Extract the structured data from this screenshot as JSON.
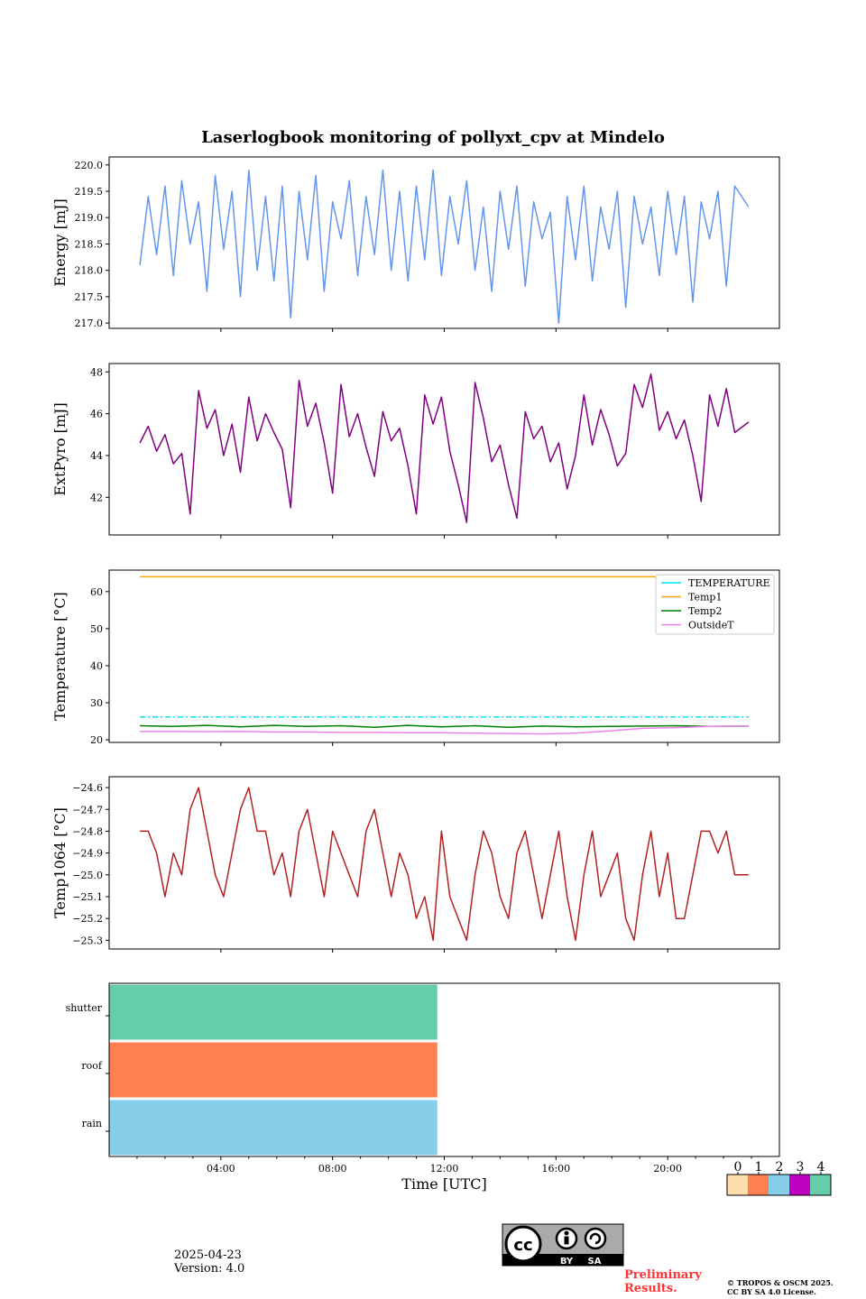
{
  "title": "Laserlogbook monitoring of pollyxt_cpv at Mindelo",
  "chart_data": [
    {
      "type": "line",
      "ylabel": "Energy [mJ]",
      "ylim": [
        216.9,
        220.15
      ],
      "yticks": [
        217.0,
        217.5,
        218.0,
        218.5,
        219.0,
        219.5,
        220.0
      ],
      "ytick_labels": [
        "217.0",
        "217.5",
        "218.0",
        "218.5",
        "219.0",
        "219.5",
        "220.0"
      ],
      "x_hours": [
        1.1,
        1.4,
        1.7,
        2.0,
        2.3,
        2.6,
        2.9,
        3.2,
        3.5,
        3.8,
        4.1,
        4.4,
        4.7,
        5.0,
        5.3,
        5.6,
        5.9,
        6.2,
        6.5,
        6.8,
        7.1,
        7.4,
        7.7,
        8.0,
        8.3,
        8.6,
        8.9,
        9.2,
        9.5,
        9.8,
        10.1,
        10.4,
        10.7,
        11.0,
        11.3,
        11.6,
        11.9,
        12.2,
        12.5,
        12.8,
        13.1,
        13.4,
        13.7,
        14.0,
        14.3,
        14.6,
        14.9,
        15.2,
        15.5,
        15.8,
        16.1,
        16.4,
        16.7,
        17.0,
        17.3,
        17.6,
        17.9,
        18.2,
        18.5,
        18.8,
        19.1,
        19.4,
        19.7,
        20.0,
        20.3,
        20.6,
        20.9,
        21.2,
        21.5,
        21.8,
        22.1,
        22.4,
        22.9
      ],
      "series": [
        {
          "color": "#6495ed",
          "values": [
            218.1,
            219.4,
            218.3,
            219.6,
            217.9,
            219.7,
            218.5,
            219.3,
            217.6,
            219.8,
            218.4,
            219.5,
            217.5,
            219.9,
            218.0,
            219.4,
            217.8,
            219.6,
            217.1,
            219.5,
            218.2,
            219.8,
            217.6,
            219.3,
            218.6,
            219.7,
            217.9,
            219.4,
            218.3,
            219.9,
            218.0,
            219.5,
            217.8,
            219.6,
            218.2,
            219.9,
            217.9,
            219.4,
            218.5,
            219.7,
            218.0,
            219.2,
            217.6,
            219.5,
            218.4,
            219.6,
            217.7,
            219.3,
            218.6,
            219.1,
            217.0,
            219.4,
            218.2,
            219.6,
            217.8,
            219.2,
            218.4,
            219.5,
            217.3,
            219.4,
            218.5,
            219.2,
            217.9,
            219.5,
            218.3,
            219.4,
            217.4,
            219.3,
            218.6,
            219.5,
            217.7,
            219.6,
            219.2
          ]
        }
      ]
    },
    {
      "type": "line",
      "ylabel": "ExtPyro [mJ]",
      "ylim": [
        40.2,
        48.4
      ],
      "yticks": [
        42,
        44,
        46,
        48
      ],
      "ytick_labels": [
        "42",
        "44",
        "46",
        "48"
      ],
      "x_hours": [
        1.1,
        1.4,
        1.7,
        2.0,
        2.3,
        2.6,
        2.9,
        3.2,
        3.5,
        3.8,
        4.1,
        4.4,
        4.7,
        5.0,
        5.3,
        5.6,
        5.9,
        6.2,
        6.5,
        6.8,
        7.1,
        7.4,
        7.7,
        8.0,
        8.3,
        8.6,
        8.9,
        9.2,
        9.5,
        9.8,
        10.1,
        10.4,
        10.7,
        11.0,
        11.3,
        11.6,
        11.9,
        12.2,
        12.5,
        12.8,
        13.1,
        13.4,
        13.7,
        14.0,
        14.3,
        14.6,
        14.9,
        15.2,
        15.5,
        15.8,
        16.1,
        16.4,
        16.7,
        17.0,
        17.3,
        17.6,
        17.9,
        18.2,
        18.5,
        18.8,
        19.1,
        19.4,
        19.7,
        20.0,
        20.3,
        20.6,
        20.9,
        21.2,
        21.5,
        21.8,
        22.1,
        22.4,
        22.9
      ],
      "series": [
        {
          "color": "#800080",
          "values": [
            44.6,
            45.4,
            44.2,
            45.0,
            43.6,
            44.1,
            41.2,
            47.1,
            45.3,
            46.2,
            44.0,
            45.5,
            43.2,
            46.8,
            44.7,
            46.0,
            45.1,
            44.3,
            41.5,
            47.6,
            45.4,
            46.5,
            44.6,
            42.2,
            47.4,
            44.9,
            46.0,
            44.4,
            43.0,
            46.1,
            44.7,
            45.3,
            43.5,
            41.2,
            46.9,
            45.5,
            46.8,
            44.2,
            42.6,
            40.8,
            47.5,
            45.8,
            43.7,
            44.5,
            42.6,
            41.0,
            46.1,
            44.8,
            45.4,
            43.7,
            44.6,
            42.4,
            44.0,
            46.9,
            44.5,
            46.2,
            45.0,
            43.5,
            44.1,
            47.4,
            46.3,
            47.9,
            45.2,
            46.1,
            44.8,
            45.7,
            44.0,
            41.8,
            46.9,
            45.4,
            47.2,
            45.1,
            45.6
          ]
        }
      ]
    },
    {
      "type": "line",
      "ylabel": "Temperature [°C]",
      "ylim": [
        19.3,
        65.8
      ],
      "yticks": [
        20,
        30,
        40,
        50,
        60
      ],
      "ytick_labels": [
        "20",
        "30",
        "40",
        "50",
        "60"
      ],
      "legend": "top-right",
      "x_hours": [
        1.1,
        2.3,
        3.5,
        4.7,
        5.9,
        7.1,
        8.3,
        9.5,
        10.7,
        11.9,
        13.1,
        14.3,
        15.5,
        16.7,
        17.9,
        19.1,
        20.3,
        21.5,
        22.9
      ],
      "series": [
        {
          "name": "TEMPERATURE",
          "color": "#00e5e5",
          "dashed": true,
          "values": [
            26.2,
            26.2,
            26.2,
            26.2,
            26.2,
            26.2,
            26.2,
            26.2,
            26.2,
            26.2,
            26.2,
            26.2,
            26.2,
            26.2,
            26.2,
            26.2,
            26.2,
            26.2,
            26.2
          ]
        },
        {
          "name": "Temp1",
          "color": "#ffa500",
          "values": [
            64.0,
            64.0,
            64.0,
            64.0,
            64.0,
            64.0,
            64.0,
            64.0,
            64.0,
            64.0,
            64.0,
            64.0,
            64.0,
            64.0,
            64.0,
            64.0,
            64.0,
            64.0,
            64.0
          ]
        },
        {
          "name": "Temp2",
          "color": "#008000",
          "values": [
            23.8,
            23.6,
            23.9,
            23.5,
            23.9,
            23.6,
            23.8,
            23.4,
            23.9,
            23.5,
            23.8,
            23.4,
            23.7,
            23.5,
            23.6,
            23.7,
            23.8,
            23.6,
            23.7
          ]
        },
        {
          "name": "OutsideT",
          "color": "#ee82ee",
          "values": [
            22.3,
            22.3,
            22.2,
            22.3,
            22.1,
            22.1,
            22.0,
            22.0,
            21.9,
            21.9,
            21.8,
            21.7,
            21.6,
            21.8,
            22.4,
            23.1,
            23.3,
            23.6,
            23.7
          ]
        }
      ]
    },
    {
      "type": "line",
      "ylabel": "Temp1064 [°C]",
      "ylim": [
        -25.34,
        -24.55
      ],
      "yticks": [
        -25.3,
        -25.2,
        -25.1,
        -25.0,
        -24.9,
        -24.8,
        -24.7,
        -24.6
      ],
      "ytick_labels": [
        "−25.3",
        "−25.2",
        "−25.1",
        "−25.0",
        "−24.9",
        "−24.8",
        "−24.7",
        "−24.6"
      ],
      "x_hours": [
        1.1,
        1.4,
        1.7,
        2.0,
        2.3,
        2.6,
        2.9,
        3.2,
        3.5,
        3.8,
        4.1,
        4.4,
        4.7,
        5.0,
        5.3,
        5.6,
        5.9,
        6.2,
        6.5,
        6.8,
        7.1,
        7.4,
        7.7,
        8.0,
        8.3,
        8.6,
        8.9,
        9.2,
        9.5,
        9.8,
        10.1,
        10.4,
        10.7,
        11.0,
        11.3,
        11.6,
        11.9,
        12.2,
        12.5,
        12.8,
        13.1,
        13.4,
        13.7,
        14.0,
        14.3,
        14.6,
        14.9,
        15.2,
        15.5,
        15.8,
        16.1,
        16.4,
        16.7,
        17.0,
        17.3,
        17.6,
        17.9,
        18.2,
        18.5,
        18.8,
        19.1,
        19.4,
        19.7,
        20.0,
        20.3,
        20.6,
        20.9,
        21.2,
        21.5,
        21.8,
        22.1,
        22.4,
        22.9
      ],
      "series": [
        {
          "color": "#b22222",
          "values": [
            -24.8,
            -24.8,
            -24.9,
            -25.1,
            -24.9,
            -25.0,
            -24.7,
            -24.6,
            -24.8,
            -25.0,
            -25.1,
            -24.9,
            -24.7,
            -24.6,
            -24.8,
            -24.8,
            -25.0,
            -24.9,
            -25.1,
            -24.8,
            -24.7,
            -24.9,
            -25.1,
            -24.8,
            -24.9,
            -25.0,
            -25.1,
            -24.8,
            -24.7,
            -24.9,
            -25.1,
            -24.9,
            -25.0,
            -25.2,
            -25.1,
            -25.3,
            -24.8,
            -25.1,
            -25.2,
            -25.3,
            -25.0,
            -24.8,
            -24.9,
            -25.1,
            -25.2,
            -24.9,
            -24.8,
            -25.0,
            -25.2,
            -25.0,
            -24.8,
            -25.1,
            -25.3,
            -25.0,
            -24.8,
            -25.1,
            -25.0,
            -24.9,
            -25.2,
            -25.3,
            -25.0,
            -24.8,
            -25.1,
            -24.9,
            -25.2,
            -25.2,
            -25.0,
            -24.8,
            -24.8,
            -24.9,
            -24.8,
            -25.0,
            -25.0
          ]
        }
      ]
    },
    {
      "type": "heatmap",
      "categories": [
        "rain",
        "roof",
        "shutter"
      ],
      "xlabel": "Time [UTC]",
      "xlim_hours": [
        0,
        24
      ],
      "xtick_hours": [
        4,
        8,
        12,
        16,
        20
      ],
      "xtick_labels": [
        "04:00",
        "08:00",
        "12:00",
        "16:00",
        "20:00"
      ],
      "blocks": [
        {
          "category": "rain",
          "start_hour": 0,
          "end_hour": 11.75,
          "status": 2
        },
        {
          "category": "roof",
          "start_hour": 0,
          "end_hour": 11.75,
          "status": 1
        },
        {
          "category": "shutter",
          "start_hour": 0,
          "end_hour": 11.75,
          "status": 4
        }
      ],
      "colorbar": {
        "labels": [
          "0",
          "1",
          "2",
          "3",
          "4"
        ],
        "colors": [
          "#ffdead",
          "#ff7f50",
          "#87ceeb",
          "#c000c0",
          "#66cdaa"
        ]
      }
    }
  ],
  "footer": {
    "date": "2025-04-23",
    "version": "Version: 4.0",
    "license_by": "BY",
    "license_sa": "SA",
    "preliminary_line1": "Preliminary",
    "preliminary_line2": "Results.",
    "copyright_line1": "© TROPOS & OSCM 2025.",
    "copyright_line2": "CC BY SA 4.0 License."
  }
}
